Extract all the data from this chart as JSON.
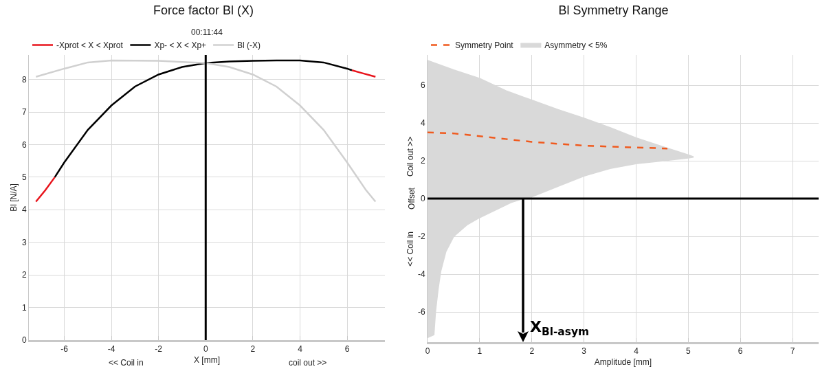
{
  "chart_data": [
    {
      "type": "line",
      "title": "Force factor Bl (X)",
      "subtitle": "00:11:44",
      "xlabel": "X [mm]",
      "ylabel": "Bl [N/A]",
      "xlim": [
        -7.5,
        7.6
      ],
      "xticks": [
        -6,
        -4,
        -2,
        0,
        2,
        4,
        6
      ],
      "ylim": [
        0,
        8.75
      ],
      "yticks": [
        0,
        1,
        2,
        3,
        4,
        5,
        6,
        7,
        8
      ],
      "grid": true,
      "legend": "top left",
      "marker": "none",
      "series": [
        {
          "name": "-Xprot < X < Xprot",
          "color": "#e8141c",
          "x": [
            -7.2,
            -6.8,
            -6.4,
            null,
            6.2,
            6.6,
            7.2
          ],
          "values": [
            4.25,
            4.6,
            5.0,
            null,
            8.28,
            8.2,
            8.08
          ]
        },
        {
          "name": "Xp- < X < Xp+",
          "color": "#000000",
          "x": [
            -6.4,
            -6,
            -5,
            -4,
            -3,
            -2,
            -1,
            0,
            1,
            2,
            3,
            4,
            5,
            6,
            6.2
          ],
          "values": [
            5.0,
            5.45,
            6.45,
            7.2,
            7.78,
            8.15,
            8.38,
            8.5,
            8.55,
            8.57,
            8.58,
            8.58,
            8.52,
            8.33,
            8.28
          ]
        },
        {
          "name": "Bl (-X)",
          "color": "#d0d0d0",
          "x": [
            -7.2,
            -6,
            -5,
            -4,
            -2,
            0,
            1,
            2,
            3,
            4,
            5,
            6,
            6.8,
            7.2
          ],
          "values": [
            8.08,
            8.33,
            8.52,
            8.58,
            8.57,
            8.5,
            8.38,
            8.15,
            7.78,
            7.2,
            6.45,
            5.45,
            4.6,
            4.25
          ]
        }
      ],
      "ref_lines": [
        {
          "axis": "x",
          "value": 0,
          "color": "#000000"
        }
      ],
      "annotations": [
        "<< Coil in",
        "coil out >>"
      ]
    },
    {
      "type": "line",
      "title": "Bl Symmetry Range",
      "xlabel": "Amplitude [mm]",
      "ylabel": "Offset",
      "xlim": [
        0,
        7.5
      ],
      "xticks": [
        0,
        1,
        2,
        3,
        4,
        5,
        6,
        7
      ],
      "ylim": [
        -7.6,
        7.6
      ],
      "yticks": [
        -6,
        -4,
        -2,
        0,
        2,
        4,
        6
      ],
      "grid": true,
      "legend": "top left",
      "marker": "none",
      "series": [
        {
          "name": "Symmetry Point",
          "color": "#f05a1e",
          "line_style": "dashed",
          "x": [
            0,
            0.5,
            1,
            1.5,
            2,
            2.5,
            3,
            3.5,
            4,
            4.6
          ],
          "values": [
            3.5,
            3.45,
            3.3,
            3.15,
            3.0,
            2.9,
            2.8,
            2.75,
            2.7,
            2.65
          ]
        },
        {
          "name": "Asymmetry < 5%",
          "type": "area",
          "color": "#d9d9d9",
          "x": [
            0,
            0.5,
            1,
            1.5,
            2,
            2.5,
            3,
            3.5,
            4,
            4.5,
            5,
            5.1,
            5,
            4.5,
            4,
            3.5,
            3,
            2.5,
            2,
            1.83,
            1.6,
            1.3,
            1,
            0.75,
            0.5,
            0.35,
            0.25,
            0.2,
            0.15,
            0.12,
            0
          ],
          "values": [
            7.3,
            6.8,
            6.35,
            5.7,
            5.2,
            4.7,
            4.25,
            3.75,
            3.2,
            2.75,
            2.3,
            2.2,
            2.15,
            2.0,
            1.85,
            1.6,
            1.2,
            0.65,
            0.1,
            0,
            -0.2,
            -0.6,
            -1.0,
            -1.4,
            -2.0,
            -2.8,
            -3.85,
            -4.8,
            -6.0,
            -7.2,
            -7.35
          ]
        }
      ],
      "ref_lines": [
        {
          "axis": "y",
          "value": 0,
          "color": "#000000"
        }
      ],
      "annotations": [
        "Coil out >>",
        "<< Coil in",
        {
          "text": "X$_{Bl-asym}$",
          "x": 1.83,
          "y": 0
        }
      ]
    }
  ]
}
